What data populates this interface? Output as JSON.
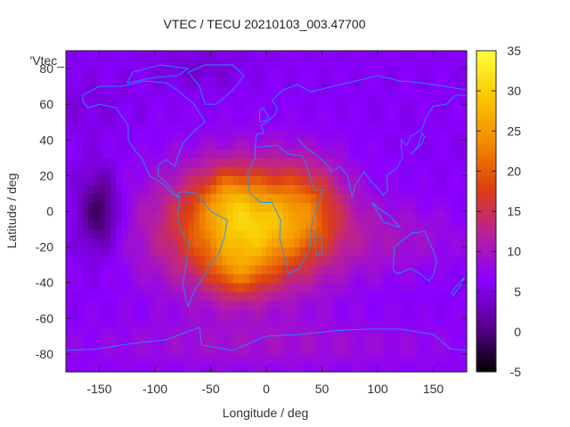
{
  "chart_data": {
    "type": "heatmap",
    "title": "VTEC / TECU 20210103_003.47700",
    "xlabel": "Longitude / deg",
    "ylabel": "Latitude / deg",
    "xlim": [
      -180,
      180
    ],
    "ylim": [
      -90,
      90
    ],
    "x_ticks": [
      -150,
      -100,
      -50,
      0,
      50,
      100,
      150
    ],
    "y_ticks": [
      -80,
      -60,
      -40,
      -20,
      0,
      20,
      40,
      60,
      80
    ],
    "colorbar": {
      "min": -5,
      "max": 35,
      "ticks": [
        -5,
        0,
        5,
        10,
        15,
        20,
        25,
        30,
        35
      ],
      "palette": [
        "#000000",
        "#5a0090",
        "#8a00ff",
        "#b8209a",
        "#dd4010",
        "#f28a00",
        "#f9c800",
        "#ffff40"
      ]
    },
    "series_label": "'Vtec_",
    "grid": false,
    "overlay": "coastlines",
    "overlay_color": "#1e90ff",
    "features": [
      {
        "lon": -20,
        "lat": -10,
        "rx": 80,
        "ry": 35,
        "value": 15
      },
      {
        "lon": -10,
        "lat": -5,
        "rx": 55,
        "ry": 28,
        "value": 9
      },
      {
        "lon": -25,
        "lat": -35,
        "rx": 25,
        "ry": 15,
        "value": 6
      },
      {
        "lon": -35,
        "lat": 10,
        "rx": 20,
        "ry": 15,
        "value": 4
      },
      {
        "lon": 40,
        "lat": 5,
        "rx": 30,
        "ry": 25,
        "value": 5
      },
      {
        "lon": -150,
        "lat": 0,
        "rx": 18,
        "ry": 22,
        "value": -8
      },
      {
        "lon": -160,
        "lat": 60,
        "rx": 40,
        "ry": 20,
        "value": -1
      },
      {
        "lon": 120,
        "lat": -15,
        "rx": 60,
        "ry": 20,
        "value": 3
      },
      {
        "lon": 0,
        "lat": -75,
        "rx": 180,
        "ry": 15,
        "value": 3
      },
      {
        "lon": -60,
        "lat": 80,
        "rx": 40,
        "ry": 10,
        "value": -2
      }
    ],
    "base_value": 6
  }
}
